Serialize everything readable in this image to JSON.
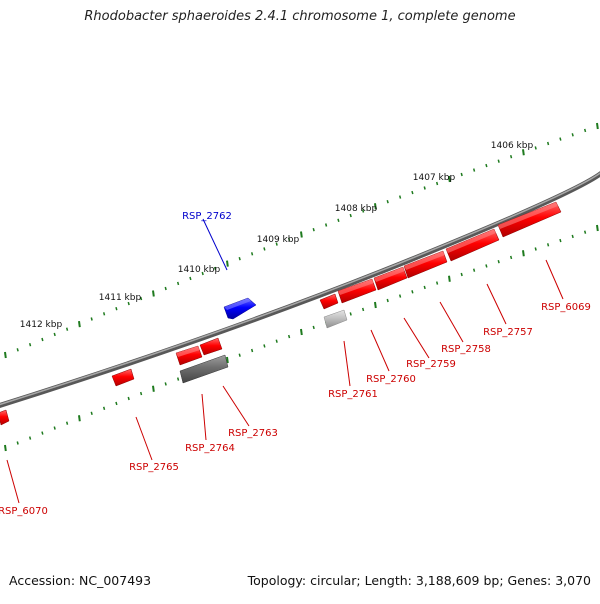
{
  "title": "Rhodobacter sphaeroides 2.4.1 chromosome 1, complete genome",
  "footer": {
    "accession": "Accession: NC_007493",
    "summary": "Topology: circular; Length: 3,188,609 bp; Genes: 3,070"
  },
  "colors": {
    "backbone": "#777777",
    "ticks": "#1e7a1e",
    "forward_gene": "#ff0000",
    "reverse_gene": "#0000ff",
    "other_feature": "#777777",
    "faded_feature": "#bbbbbb",
    "forward_label": "#cc0000",
    "reverse_label": "#0000cc",
    "scale_label": "#111111"
  },
  "scale": {
    "unit": "kbp",
    "labels": [
      "1406 kbp",
      "1407 kbp",
      "1408 kbp",
      "1409 kbp",
      "1410 kbp",
      "1411 kbp",
      "1412 kbp"
    ]
  },
  "genes": [
    {
      "id": "RSP_6069",
      "strand": "+",
      "label": "RSP_6069"
    },
    {
      "id": "RSP_2757",
      "strand": "+",
      "label": "RSP_2757"
    },
    {
      "id": "RSP_2758",
      "strand": "+",
      "label": "RSP_2758"
    },
    {
      "id": "RSP_2759",
      "strand": "+",
      "label": "RSP_2759"
    },
    {
      "id": "RSP_2760",
      "strand": "+",
      "label": "RSP_2760"
    },
    {
      "id": "RSP_2761",
      "strand": "+",
      "label": "RSP_2761"
    },
    {
      "id": "RSP_2762",
      "strand": "-",
      "label": "RSP_2762"
    },
    {
      "id": "RSP_2763",
      "strand": "+",
      "label": "RSP_2763"
    },
    {
      "id": "RSP_2764",
      "strand": "+",
      "label": "RSP_2764"
    },
    {
      "id": "RSP_2765",
      "strand": "+",
      "label": "RSP_2765"
    },
    {
      "id": "RSP_6070",
      "strand": "+",
      "label": "RSP_6070"
    }
  ]
}
